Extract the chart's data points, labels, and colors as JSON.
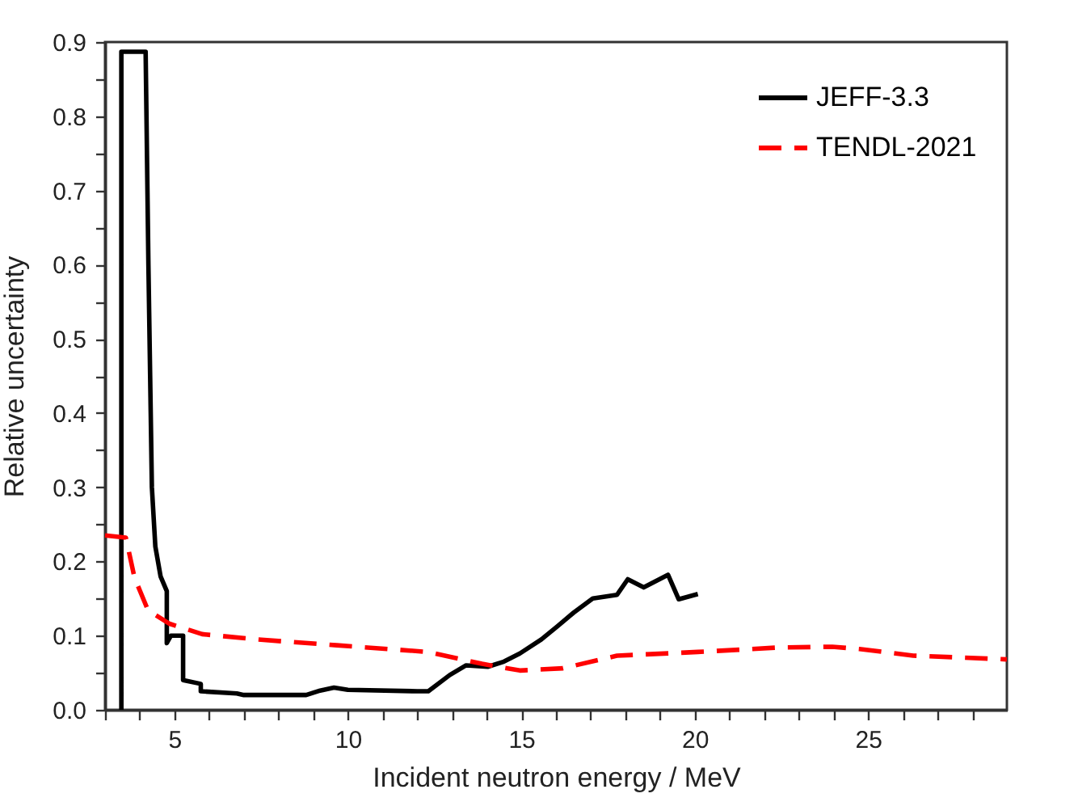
{
  "chart_data": {
    "type": "line",
    "xlabel": "Incident neutron energy / MeV",
    "ylabel": "Relative uncertainty",
    "xlim": [
      3,
      29
    ],
    "ylim": [
      0,
      0.9
    ],
    "xticks": [
      {
        "value": 3,
        "label": null
      },
      {
        "value": 4,
        "label": null
      },
      5,
      {
        "value": 6,
        "label": null
      },
      {
        "value": 7,
        "label": null
      },
      {
        "value": 8,
        "label": null
      },
      {
        "value": 9,
        "label": null
      },
      10,
      {
        "value": 11,
        "label": null
      },
      {
        "value": 12,
        "label": null
      },
      {
        "value": 13,
        "label": null
      },
      {
        "value": 14,
        "label": null
      },
      15,
      {
        "value": 16,
        "label": null
      },
      {
        "value": 17,
        "label": null
      },
      {
        "value": 18,
        "label": null
      },
      {
        "value": 19,
        "label": null
      },
      20,
      {
        "value": 21,
        "label": null
      },
      {
        "value": 22,
        "label": null
      },
      {
        "value": 23,
        "label": null
      },
      {
        "value": 24,
        "label": null
      },
      25,
      {
        "value": 26,
        "label": null
      },
      {
        "value": 27,
        "label": null
      },
      {
        "value": 28,
        "label": null
      }
    ],
    "yticks": [
      {
        "value": 0,
        "label": "0.0"
      },
      {
        "value": 0.05,
        "label": null
      },
      0.1,
      {
        "value": 0.15,
        "label": null
      },
      0.2,
      {
        "value": 0.25,
        "label": null
      },
      0.3,
      {
        "value": 0.35,
        "label": null
      },
      0.4,
      {
        "value": 0.45,
        "label": null
      },
      0.5,
      {
        "value": 0.55,
        "label": null
      },
      0.6,
      {
        "value": 0.65,
        "label": null
      },
      0.7,
      {
        "value": 0.75,
        "label": null
      },
      0.8,
      {
        "value": 0.85,
        "label": null
      },
      0.9
    ],
    "grid": false,
    "legend": "top right",
    "marker": "none",
    "series": [
      {
        "name": "JEFF-3.3",
        "color": "#000000",
        "line_style": "solid",
        "x": [
          3.47,
          3.47,
          4.17,
          4.25,
          4.3,
          4.35,
          4.45,
          4.6,
          4.78,
          4.78,
          4.9,
          5.25,
          5.25,
          5.76,
          5.76,
          6.8,
          7,
          8.8,
          9.2,
          9.6,
          10,
          12,
          12.32,
          12.94,
          13.41,
          14.03,
          14.5,
          14.96,
          15.58,
          16.05,
          16.51,
          17.06,
          17.76,
          18.07,
          18.53,
          19.23,
          19.54,
          20.09
        ],
        "values": [
          0,
          0.887,
          0.887,
          0.6,
          0.45,
          0.3,
          0.22,
          0.18,
          0.16,
          0.09,
          0.1,
          0.1,
          0.04,
          0.035,
          0.025,
          0.022,
          0.02,
          0.02,
          0.026,
          0.03,
          0.027,
          0.025,
          0.025,
          0.047,
          0.06,
          0.058,
          0.065,
          0.076,
          0.095,
          0.113,
          0.131,
          0.15,
          0.155,
          0.176,
          0.165,
          0.182,
          0.149,
          0.156
        ]
      },
      {
        "name": "TENDL-2021",
        "color": "#ff0000",
        "line_style": "dashed",
        "x": [
          3,
          3.6,
          3.85,
          4.24,
          4.86,
          5.8,
          7.35,
          9.68,
          12.32,
          13.87,
          14.96,
          16.2,
          17.76,
          20.09,
          22.42,
          23.97,
          24.75,
          26.3,
          29
        ],
        "values": [
          0.235,
          0.232,
          0.178,
          0.134,
          0.116,
          0.102,
          0.095,
          0.087,
          0.078,
          0.062,
          0.053,
          0.056,
          0.073,
          0.078,
          0.084,
          0.085,
          0.082,
          0.073,
          0.068
        ]
      }
    ]
  }
}
